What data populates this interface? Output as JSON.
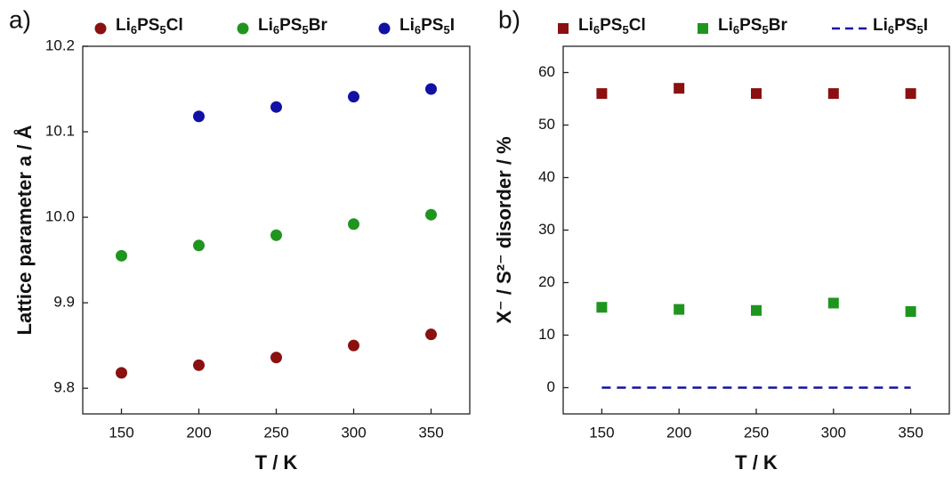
{
  "chart_data": [
    {
      "type": "scatter",
      "panel": "a)",
      "xlabel": "T / K",
      "ylabel": "Lattice parameter a / Å",
      "x": [
        150,
        200,
        250,
        300,
        350
      ],
      "series": [
        {
          "name": "Li6PS5Cl",
          "color": "#8b1010",
          "marker": "circle",
          "values": [
            9.818,
            9.827,
            9.836,
            9.85,
            9.863
          ]
        },
        {
          "name": "Li6PS5Br",
          "color": "#1f951f",
          "marker": "circle",
          "values": [
            9.955,
            9.967,
            9.979,
            9.992,
            10.003
          ]
        },
        {
          "name": "Li6PS5I",
          "color": "#1111a6",
          "marker": "circle",
          "values": [
            null,
            10.118,
            10.129,
            10.141,
            10.15
          ]
        }
      ],
      "xlim": [
        125,
        375
      ],
      "xticks": [
        150,
        200,
        250,
        300,
        350
      ],
      "ylim": [
        9.77,
        10.2
      ],
      "yticks": [
        {
          "value": 9.8,
          "label": "9.8"
        },
        {
          "value": 9.9,
          "label": "9.9"
        },
        {
          "value": 10.0,
          "label": "10.0"
        },
        {
          "value": 10.1,
          "label": "10.1"
        },
        {
          "value": 10.2,
          "label": "10.2"
        }
      ]
    },
    {
      "type": "scatter",
      "panel": "b)",
      "xlabel": "T / K",
      "ylabel": "X⁻ / S²⁻ disorder / %",
      "x": [
        150,
        200,
        250,
        300,
        350
      ],
      "series": [
        {
          "name": "Li6PS5Cl",
          "color": "#8b1010",
          "marker": "square",
          "values": [
            56,
            57,
            56,
            56,
            56
          ]
        },
        {
          "name": "Li6PS5Br",
          "color": "#1f951f",
          "marker": "square",
          "values": [
            15.3,
            14.9,
            14.7,
            16.1,
            14.5
          ]
        },
        {
          "name": "Li6PS5I",
          "color": "#1111a6",
          "marker": "dash",
          "values": [
            0,
            0,
            0,
            0,
            0
          ]
        }
      ],
      "xlim": [
        125,
        375
      ],
      "xticks": [
        150,
        200,
        250,
        300,
        350
      ],
      "ylim": [
        -5,
        65
      ],
      "yticks": [
        0,
        10,
        20,
        30,
        40,
        50,
        60
      ]
    }
  ]
}
